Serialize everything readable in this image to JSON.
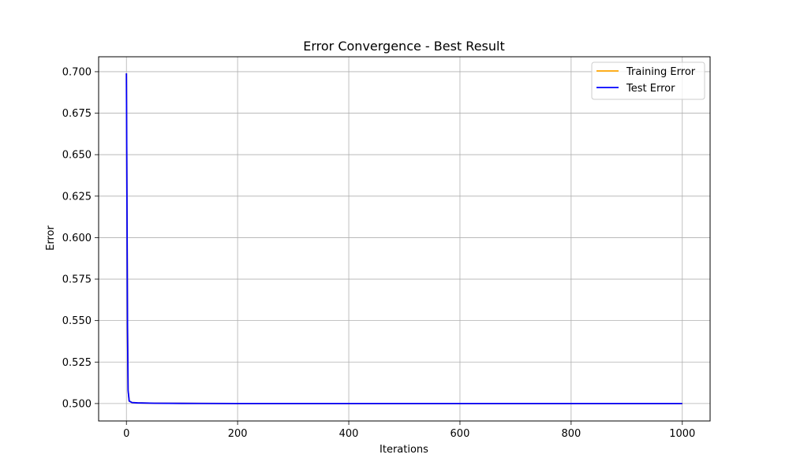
{
  "chart_data": {
    "type": "line",
    "title": "Error Convergence - Best Result",
    "xlabel": "Iterations",
    "ylabel": "Error",
    "xlim": [
      -50,
      1050
    ],
    "ylim": [
      0.4895,
      0.709
    ],
    "grid": true,
    "legend_position": "top-right",
    "x_ticks": [
      0,
      200,
      400,
      600,
      800,
      1000
    ],
    "x_tick_labels": [
      "0",
      "200",
      "400",
      "600",
      "800",
      "1000"
    ],
    "y_ticks": [
      0.5,
      0.525,
      0.55,
      0.575,
      0.6,
      0.625,
      0.65,
      0.675,
      0.7
    ],
    "y_tick_labels": [
      "0.500",
      "0.525",
      "0.550",
      "0.575",
      "0.600",
      "0.625",
      "0.650",
      "0.675",
      "0.700"
    ],
    "series": [
      {
        "name": "Training Error",
        "color": "#ffa500",
        "x": [
          0,
          1,
          2,
          3,
          5,
          10,
          20,
          50,
          100,
          200,
          400,
          600,
          800,
          1000
        ],
        "y": [
          0.699,
          0.62,
          0.545,
          0.508,
          0.5015,
          0.5006,
          0.5004,
          0.5002,
          0.5001,
          0.5,
          0.5,
          0.5,
          0.5,
          0.5
        ]
      },
      {
        "name": "Test Error",
        "color": "#0000ff",
        "x": [
          0,
          1,
          2,
          3,
          5,
          10,
          20,
          50,
          100,
          200,
          400,
          600,
          800,
          1000
        ],
        "y": [
          0.699,
          0.62,
          0.545,
          0.508,
          0.5015,
          0.5006,
          0.5004,
          0.5002,
          0.5001,
          0.5,
          0.5,
          0.5,
          0.5,
          0.5
        ]
      }
    ]
  }
}
